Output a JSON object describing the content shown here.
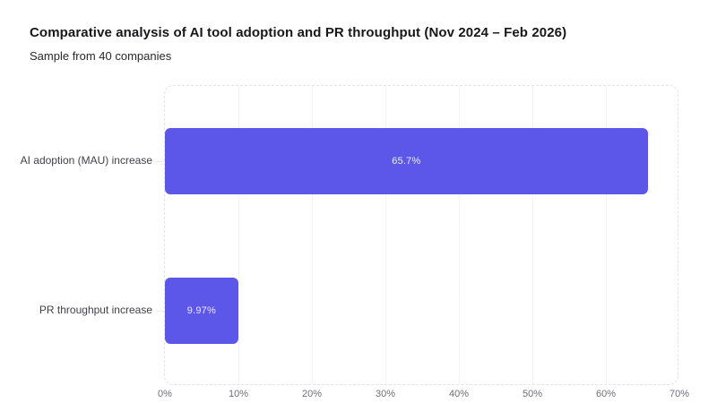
{
  "header": {
    "title": "Comparative analysis of AI tool adoption and PR throughput (Nov 2024 – Feb 2026)",
    "subtitle": "Sample from 40 companies"
  },
  "chart_data": {
    "type": "bar",
    "orientation": "horizontal",
    "title": "Comparative analysis of AI tool adoption and PR throughput (Nov 2024 – Feb 2026)",
    "subtitle": "Sample from 40 companies",
    "categories": [
      "AI adoption (MAU) increase",
      "PR throughput increase"
    ],
    "values": [
      65.7,
      9.97
    ],
    "value_labels": [
      "65.7%",
      "9.97%"
    ],
    "xlabel": "",
    "ylabel": "",
    "xlim": [
      0,
      70
    ],
    "x_tick_values": [
      0,
      10,
      20,
      30,
      40,
      50,
      60,
      70
    ],
    "x_tick_labels": [
      "0%",
      "10%",
      "20%",
      "30%",
      "40%",
      "50%",
      "60%",
      "70%"
    ],
    "grid": "vertical-dotted",
    "legend": "none",
    "bar_color": "#5c57e8",
    "value_label_color": "#edebfc"
  }
}
